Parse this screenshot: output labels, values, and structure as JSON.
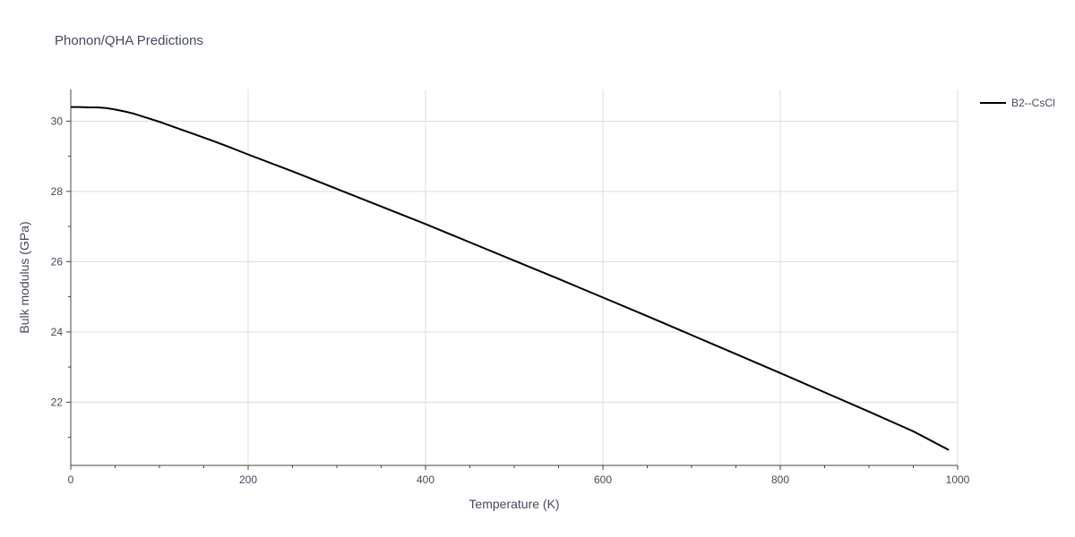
{
  "chart_data": {
    "type": "line",
    "title": "Phonon/QHA Predictions",
    "xlabel": "Temperature (K)",
    "ylabel": "Bulk modulus (GPa)",
    "xlim": [
      0,
      1000
    ],
    "ylim": [
      20.2,
      30.9
    ],
    "x_ticks": [
      0,
      200,
      400,
      600,
      800,
      1000
    ],
    "x_tick_labels": [
      "0",
      "200",
      "400",
      "600",
      "800",
      "1000"
    ],
    "x_minor_ticks": [
      50,
      100,
      150,
      250,
      300,
      350,
      450,
      500,
      550,
      650,
      700,
      750,
      850,
      900,
      950
    ],
    "y_ticks": [
      22,
      24,
      26,
      28,
      30
    ],
    "y_tick_labels": [
      "22",
      "24",
      "26",
      "28",
      "30"
    ],
    "y_minor_ticks": [
      21,
      23,
      25,
      27,
      29
    ],
    "grid": true,
    "legend_position": "top-right",
    "series": [
      {
        "name": "B2--CsCl",
        "color": "#000000",
        "x": [
          0,
          10,
          20,
          30,
          40,
          50,
          60,
          70,
          80,
          90,
          100,
          120,
          140,
          160,
          180,
          200,
          250,
          300,
          350,
          400,
          450,
          500,
          550,
          600,
          650,
          700,
          750,
          800,
          850,
          900,
          950,
          990
        ],
        "y": [
          30.4,
          30.4,
          30.39,
          30.39,
          30.37,
          30.33,
          30.28,
          30.22,
          30.14,
          30.06,
          29.98,
          29.8,
          29.62,
          29.44,
          29.25,
          29.05,
          28.57,
          28.07,
          27.57,
          27.07,
          26.55,
          26.03,
          25.51,
          24.98,
          24.45,
          23.91,
          23.37,
          22.83,
          22.28,
          21.73,
          21.17,
          20.64
        ]
      }
    ]
  }
}
